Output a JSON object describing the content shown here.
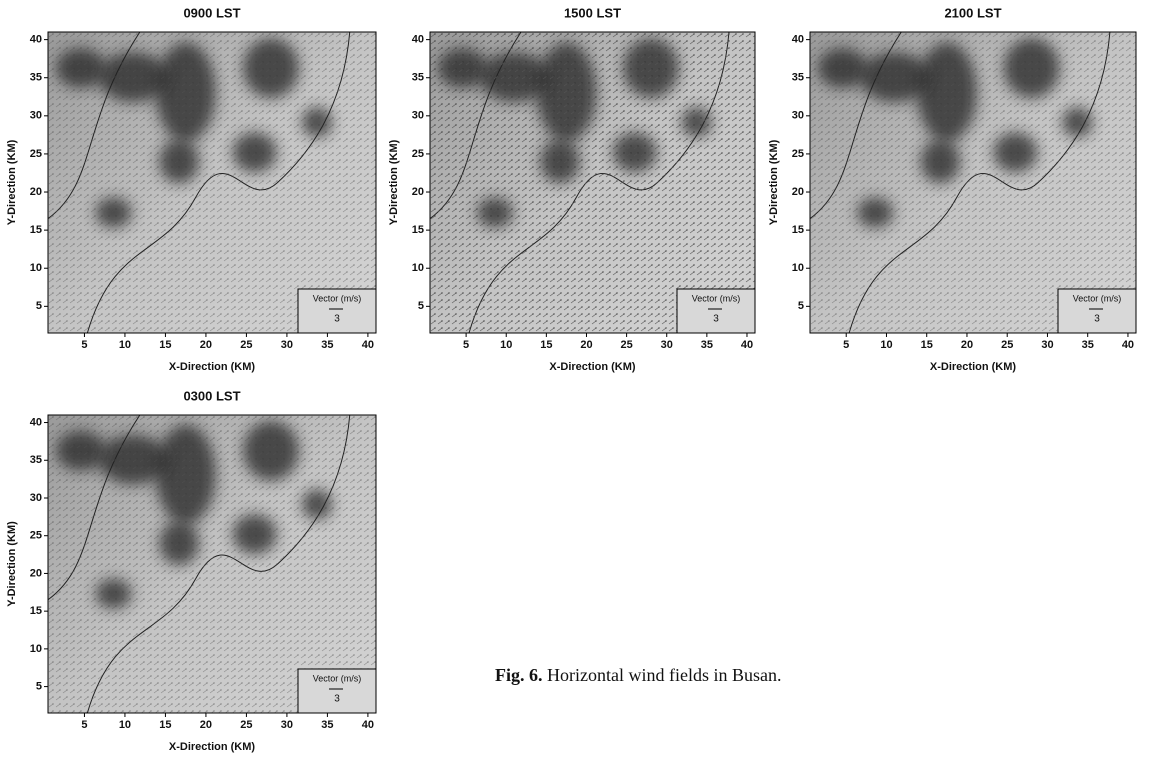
{
  "axes": {
    "xlabel": "X-Direction (KM)",
    "ylabel": "Y-Direction (KM)",
    "xlim": [
      0.5,
      41
    ],
    "ylim": [
      1.5,
      41
    ],
    "xticks": [
      5,
      10,
      15,
      20,
      25,
      30,
      35,
      40
    ],
    "yticks": [
      5,
      10,
      15,
      20,
      25,
      30,
      35,
      40
    ]
  },
  "legend": {
    "title": "Vector (m/s)",
    "scale": "3"
  },
  "panels": [
    {
      "title": "0900 LST"
    },
    {
      "title": "1500 LST"
    },
    {
      "title": "2100 LST"
    },
    {
      "title": "0300 LST"
    }
  ],
  "caption": {
    "label": "Fig. 6.",
    "text": "Horizontal wind fields in Busan."
  }
}
